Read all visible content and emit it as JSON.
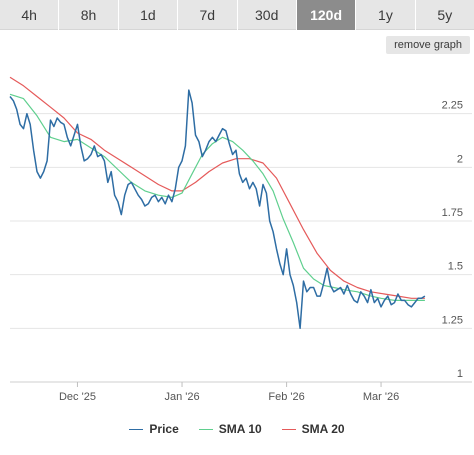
{
  "toolbar": {
    "tabs": [
      "4h",
      "8h",
      "1d",
      "7d",
      "30d",
      "120d",
      "1y",
      "5y"
    ],
    "active_tab": "120d",
    "remove_graph_label": "remove graph"
  },
  "colors": {
    "price": "#2e6da4",
    "sma10": "#5fcf8e",
    "sma20": "#e55a5a",
    "grid": "#e5e5e5",
    "tab_active_bg": "#8c8c8c",
    "tab_bg": "#e6e6e6"
  },
  "chart_data": {
    "type": "line",
    "x_domain": [
      "2025-11-11",
      "2026-03-25"
    ],
    "ylim": [
      1,
      2.5
    ],
    "y_ticks": [
      1,
      1.25,
      1.5,
      1.75,
      2,
      2.25
    ],
    "y_tick_labels": [
      "1",
      "1.25",
      "1.5",
      "1.75",
      "2",
      "2.25"
    ],
    "x_ticks": [
      "2025-12-01",
      "2026-01-01",
      "2026-02-01",
      "2026-03-01"
    ],
    "x_tick_labels": [
      "Dec '25",
      "Jan '26",
      "Feb '26",
      "Mar '26"
    ],
    "grid": true,
    "legend_position": "bottom",
    "series": [
      {
        "name": "Price",
        "color_key": "price",
        "points": [
          [
            "2025-11-11",
            2.33
          ],
          [
            "2025-11-12",
            2.31
          ],
          [
            "2025-11-13",
            2.27
          ],
          [
            "2025-11-14",
            2.2
          ],
          [
            "2025-11-15",
            2.18
          ],
          [
            "2025-11-16",
            2.25
          ],
          [
            "2025-11-17",
            2.2
          ],
          [
            "2025-11-18",
            2.08
          ],
          [
            "2025-11-19",
            1.98
          ],
          [
            "2025-11-20",
            1.95
          ],
          [
            "2025-11-21",
            1.98
          ],
          [
            "2025-11-22",
            2.03
          ],
          [
            "2025-11-23",
            2.22
          ],
          [
            "2025-11-24",
            2.19
          ],
          [
            "2025-11-25",
            2.23
          ],
          [
            "2025-11-26",
            2.21
          ],
          [
            "2025-11-27",
            2.2
          ],
          [
            "2025-11-28",
            2.14
          ],
          [
            "2025-11-29",
            2.1
          ],
          [
            "2025-11-30",
            2.15
          ],
          [
            "2025-12-01",
            2.2
          ],
          [
            "2025-12-02",
            2.1
          ],
          [
            "2025-12-03",
            2.03
          ],
          [
            "2025-12-04",
            2.04
          ],
          [
            "2025-12-05",
            2.06
          ],
          [
            "2025-12-06",
            2.1
          ],
          [
            "2025-12-07",
            2.05
          ],
          [
            "2025-12-08",
            2.06
          ],
          [
            "2025-12-09",
            2.03
          ],
          [
            "2025-12-10",
            1.93
          ],
          [
            "2025-12-11",
            1.98
          ],
          [
            "2025-12-12",
            1.87
          ],
          [
            "2025-12-13",
            1.84
          ],
          [
            "2025-12-14",
            1.78
          ],
          [
            "2025-12-15",
            1.87
          ],
          [
            "2025-12-16",
            1.92
          ],
          [
            "2025-12-17",
            1.93
          ],
          [
            "2025-12-18",
            1.9
          ],
          [
            "2025-12-19",
            1.87
          ],
          [
            "2025-12-20",
            1.85
          ],
          [
            "2025-12-21",
            1.82
          ],
          [
            "2025-12-22",
            1.83
          ],
          [
            "2025-12-23",
            1.86
          ],
          [
            "2025-12-24",
            1.87
          ],
          [
            "2025-12-25",
            1.84
          ],
          [
            "2025-12-26",
            1.86
          ],
          [
            "2025-12-27",
            1.83
          ],
          [
            "2025-12-28",
            1.87
          ],
          [
            "2025-12-29",
            1.84
          ],
          [
            "2025-12-30",
            1.9
          ],
          [
            "2025-12-31",
            2.0
          ],
          [
            "2026-01-01",
            2.03
          ],
          [
            "2026-01-02",
            2.1
          ],
          [
            "2026-01-03",
            2.36
          ],
          [
            "2026-01-04",
            2.3
          ],
          [
            "2026-01-05",
            2.15
          ],
          [
            "2026-01-06",
            2.12
          ],
          [
            "2026-01-07",
            2.05
          ],
          [
            "2026-01-08",
            2.08
          ],
          [
            "2026-01-09",
            2.12
          ],
          [
            "2026-01-10",
            2.14
          ],
          [
            "2026-01-11",
            2.12
          ],
          [
            "2026-01-12",
            2.15
          ],
          [
            "2026-01-13",
            2.18
          ],
          [
            "2026-01-14",
            2.17
          ],
          [
            "2026-01-15",
            2.11
          ],
          [
            "2026-01-16",
            2.06
          ],
          [
            "2026-01-17",
            2.08
          ],
          [
            "2026-01-18",
            1.97
          ],
          [
            "2026-01-19",
            1.93
          ],
          [
            "2026-01-20",
            1.95
          ],
          [
            "2026-01-21",
            1.9
          ],
          [
            "2026-01-22",
            1.93
          ],
          [
            "2026-01-23",
            1.9
          ],
          [
            "2026-01-24",
            1.82
          ],
          [
            "2026-01-25",
            1.92
          ],
          [
            "2026-01-26",
            1.88
          ],
          [
            "2026-01-27",
            1.75
          ],
          [
            "2026-01-28",
            1.7
          ],
          [
            "2026-01-29",
            1.62
          ],
          [
            "2026-01-30",
            1.55
          ],
          [
            "2026-01-31",
            1.5
          ],
          [
            "2026-02-01",
            1.62
          ],
          [
            "2026-02-02",
            1.5
          ],
          [
            "2026-02-03",
            1.45
          ],
          [
            "2026-02-04",
            1.37
          ],
          [
            "2026-02-05",
            1.25
          ],
          [
            "2026-02-06",
            1.47
          ],
          [
            "2026-02-07",
            1.42
          ],
          [
            "2026-02-08",
            1.44
          ],
          [
            "2026-02-09",
            1.44
          ],
          [
            "2026-02-10",
            1.4
          ],
          [
            "2026-02-11",
            1.4
          ],
          [
            "2026-02-12",
            1.46
          ],
          [
            "2026-02-13",
            1.53
          ],
          [
            "2026-02-14",
            1.45
          ],
          [
            "2026-02-15",
            1.42
          ],
          [
            "2026-02-16",
            1.43
          ],
          [
            "2026-02-17",
            1.44
          ],
          [
            "2026-02-18",
            1.41
          ],
          [
            "2026-02-19",
            1.45
          ],
          [
            "2026-02-20",
            1.41
          ],
          [
            "2026-02-21",
            1.38
          ],
          [
            "2026-02-22",
            1.37
          ],
          [
            "2026-02-23",
            1.42
          ],
          [
            "2026-02-24",
            1.4
          ],
          [
            "2026-02-25",
            1.37
          ],
          [
            "2026-02-26",
            1.43
          ],
          [
            "2026-02-27",
            1.37
          ],
          [
            "2026-02-28",
            1.39
          ],
          [
            "2026-03-01",
            1.35
          ],
          [
            "2026-03-02",
            1.38
          ],
          [
            "2026-03-03",
            1.4
          ],
          [
            "2026-03-04",
            1.36
          ],
          [
            "2026-03-05",
            1.37
          ],
          [
            "2026-03-06",
            1.41
          ],
          [
            "2026-03-07",
            1.38
          ],
          [
            "2026-03-08",
            1.38
          ],
          [
            "2026-03-09",
            1.36
          ],
          [
            "2026-03-10",
            1.35
          ],
          [
            "2026-03-11",
            1.37
          ],
          [
            "2026-03-12",
            1.39
          ],
          [
            "2026-03-13",
            1.39
          ],
          [
            "2026-03-14",
            1.4
          ]
        ]
      },
      {
        "name": "SMA 10",
        "color_key": "sma10",
        "points": [
          [
            "2025-11-11",
            2.34
          ],
          [
            "2025-11-15",
            2.32
          ],
          [
            "2025-11-19",
            2.24
          ],
          [
            "2025-11-23",
            2.14
          ],
          [
            "2025-11-27",
            2.12
          ],
          [
            "2025-12-01",
            2.13
          ],
          [
            "2025-12-05",
            2.09
          ],
          [
            "2025-12-09",
            2.05
          ],
          [
            "2025-12-13",
            1.99
          ],
          [
            "2025-12-17",
            1.93
          ],
          [
            "2025-12-21",
            1.89
          ],
          [
            "2025-12-25",
            1.87
          ],
          [
            "2025-12-29",
            1.86
          ],
          [
            "2026-01-01",
            1.88
          ],
          [
            "2026-01-04",
            1.97
          ],
          [
            "2026-01-07",
            2.06
          ],
          [
            "2026-01-10",
            2.11
          ],
          [
            "2026-01-13",
            2.14
          ],
          [
            "2026-01-16",
            2.12
          ],
          [
            "2026-01-19",
            2.08
          ],
          [
            "2026-01-22",
            2.03
          ],
          [
            "2026-01-25",
            1.97
          ],
          [
            "2026-01-28",
            1.89
          ],
          [
            "2026-01-31",
            1.76
          ],
          [
            "2026-02-03",
            1.65
          ],
          [
            "2026-02-06",
            1.53
          ],
          [
            "2026-02-09",
            1.48
          ],
          [
            "2026-02-12",
            1.45
          ],
          [
            "2026-02-15",
            1.44
          ],
          [
            "2026-02-18",
            1.43
          ],
          [
            "2026-02-22",
            1.42
          ],
          [
            "2026-02-26",
            1.4
          ],
          [
            "2026-03-01",
            1.39
          ],
          [
            "2026-03-05",
            1.38
          ],
          [
            "2026-03-09",
            1.38
          ],
          [
            "2026-03-14",
            1.38
          ]
        ]
      },
      {
        "name": "SMA 20",
        "color_key": "sma20",
        "points": [
          [
            "2025-11-11",
            2.42
          ],
          [
            "2025-11-15",
            2.38
          ],
          [
            "2025-11-19",
            2.33
          ],
          [
            "2025-11-23",
            2.28
          ],
          [
            "2025-11-27",
            2.23
          ],
          [
            "2025-12-01",
            2.16
          ],
          [
            "2025-12-05",
            2.13
          ],
          [
            "2025-12-09",
            2.08
          ],
          [
            "2025-12-13",
            2.04
          ],
          [
            "2025-12-17",
            2.0
          ],
          [
            "2025-12-21",
            1.96
          ],
          [
            "2025-12-25",
            1.92
          ],
          [
            "2025-12-29",
            1.89
          ],
          [
            "2026-01-01",
            1.89
          ],
          [
            "2026-01-05",
            1.93
          ],
          [
            "2026-01-09",
            1.98
          ],
          [
            "2026-01-13",
            2.02
          ],
          [
            "2026-01-17",
            2.04
          ],
          [
            "2026-01-21",
            2.04
          ],
          [
            "2026-01-25",
            2.02
          ],
          [
            "2026-01-29",
            1.95
          ],
          [
            "2026-02-02",
            1.83
          ],
          [
            "2026-02-06",
            1.71
          ],
          [
            "2026-02-10",
            1.6
          ],
          [
            "2026-02-14",
            1.52
          ],
          [
            "2026-02-18",
            1.47
          ],
          [
            "2026-02-22",
            1.44
          ],
          [
            "2026-02-26",
            1.42
          ],
          [
            "2026-03-02",
            1.41
          ],
          [
            "2026-03-06",
            1.4
          ],
          [
            "2026-03-10",
            1.39
          ],
          [
            "2026-03-14",
            1.39
          ]
        ]
      }
    ]
  }
}
